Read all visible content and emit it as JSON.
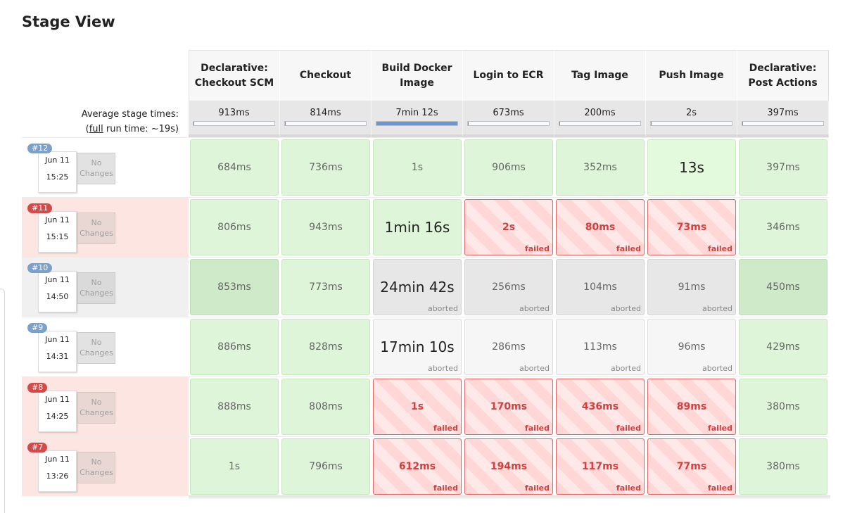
{
  "title": "Stage View",
  "stages": [
    "Declarative: Checkout SCM",
    "Checkout",
    "Build Docker Image",
    "Login to ECR",
    "Tag Image",
    "Push Image",
    "Declarative: Post Actions"
  ],
  "averages": {
    "label": "Average stage times:",
    "full_prefix": "(",
    "full_link": "full",
    "full_suffix": " run time: ~19s)",
    "times": [
      "913ms",
      "814ms",
      "7min 12s",
      "673ms",
      "200ms",
      "2s",
      "397ms"
    ],
    "bar_fractions": [
      0.01,
      0.01,
      1.0,
      0.01,
      0.01,
      0.01,
      0.01
    ]
  },
  "no_changes_label": "No Changes",
  "colors": {
    "success": "#dff5d9",
    "failed": "#d0403f",
    "aborted": "#e7e7e7",
    "bar": "#6c95d4"
  },
  "runs": [
    {
      "number": "#12",
      "status": "success",
      "date": "Jun 11",
      "time": "15:25",
      "cells": [
        {
          "t": "684ms",
          "s": "success"
        },
        {
          "t": "736ms",
          "s": "success"
        },
        {
          "t": "1s",
          "s": "success"
        },
        {
          "t": "906ms",
          "s": "success"
        },
        {
          "t": "352ms",
          "s": "success"
        },
        {
          "t": "13s",
          "s": "success-light",
          "big": true
        },
        {
          "t": "397ms",
          "s": "success"
        }
      ]
    },
    {
      "number": "#11",
      "status": "failed",
      "date": "Jun 11",
      "time": "15:15",
      "cells": [
        {
          "t": "806ms",
          "s": "success"
        },
        {
          "t": "943ms",
          "s": "success"
        },
        {
          "t": "1min 16s",
          "s": "success",
          "big": true
        },
        {
          "t": "2s",
          "s": "failed",
          "label": "failed"
        },
        {
          "t": "80ms",
          "s": "failed",
          "label": "failed"
        },
        {
          "t": "73ms",
          "s": "failed",
          "label": "failed"
        },
        {
          "t": "346ms",
          "s": "success"
        }
      ]
    },
    {
      "number": "#10",
      "status": "aborted",
      "date": "Jun 11",
      "time": "14:50",
      "cells": [
        {
          "t": "853ms",
          "s": "success-dark"
        },
        {
          "t": "773ms",
          "s": "success"
        },
        {
          "t": "24min 42s",
          "s": "aborted",
          "big": true,
          "label": "aborted"
        },
        {
          "t": "256ms",
          "s": "aborted",
          "label": "aborted"
        },
        {
          "t": "104ms",
          "s": "aborted",
          "label": "aborted"
        },
        {
          "t": "91ms",
          "s": "aborted",
          "label": "aborted"
        },
        {
          "t": "450ms",
          "s": "success-dark"
        }
      ]
    },
    {
      "number": "#9",
      "status": "success",
      "date": "Jun 11",
      "time": "14:31",
      "cells": [
        {
          "t": "886ms",
          "s": "success"
        },
        {
          "t": "828ms",
          "s": "success"
        },
        {
          "t": "17min 10s",
          "s": "aborted-light",
          "big": true,
          "label": "aborted"
        },
        {
          "t": "286ms",
          "s": "aborted-light",
          "label": "aborted"
        },
        {
          "t": "113ms",
          "s": "aborted-light",
          "label": "aborted"
        },
        {
          "t": "96ms",
          "s": "aborted-light",
          "label": "aborted"
        },
        {
          "t": "429ms",
          "s": "success"
        }
      ]
    },
    {
      "number": "#8",
      "status": "failed",
      "date": "Jun 11",
      "time": "14:25",
      "cells": [
        {
          "t": "888ms",
          "s": "success"
        },
        {
          "t": "808ms",
          "s": "success"
        },
        {
          "t": "1s",
          "s": "failed",
          "label": "failed"
        },
        {
          "t": "170ms",
          "s": "failed",
          "label": "failed"
        },
        {
          "t": "436ms",
          "s": "failed",
          "label": "failed"
        },
        {
          "t": "89ms",
          "s": "failed",
          "label": "failed"
        },
        {
          "t": "380ms",
          "s": "success"
        }
      ]
    },
    {
      "number": "#7",
      "status": "failed",
      "date": "Jun 11",
      "time": "13:26",
      "cells": [
        {
          "t": "1s",
          "s": "success"
        },
        {
          "t": "796ms",
          "s": "success"
        },
        {
          "t": "612ms",
          "s": "failed",
          "label": "failed"
        },
        {
          "t": "194ms",
          "s": "failed",
          "label": "failed"
        },
        {
          "t": "117ms",
          "s": "failed",
          "label": "failed"
        },
        {
          "t": "77ms",
          "s": "failed",
          "label": "failed"
        },
        {
          "t": "380ms",
          "s": "success"
        }
      ]
    }
  ]
}
